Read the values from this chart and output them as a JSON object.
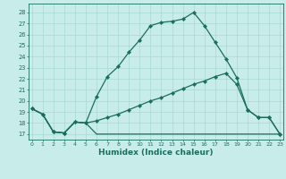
{
  "bg_color": "#c8ecea",
  "line_color": "#1a6e60",
  "grid_color": "#a8d8d0",
  "xlabel": "Humidex (Indice chaleur)",
  "xlabel_fontsize": 6.5,
  "ylim": [
    16.5,
    28.8
  ],
  "xlim": [
    -0.3,
    23.3
  ],
  "yticks": [
    17,
    18,
    19,
    20,
    21,
    22,
    23,
    24,
    25,
    26,
    27,
    28
  ],
  "xticks": [
    0,
    1,
    2,
    3,
    4,
    5,
    6,
    7,
    8,
    9,
    10,
    11,
    12,
    13,
    14,
    15,
    16,
    17,
    18,
    19,
    20,
    21,
    22,
    23
  ],
  "line1_x": [
    0,
    1,
    2,
    3,
    4,
    5,
    6,
    7,
    8,
    9,
    10,
    11,
    12,
    13,
    14,
    15,
    16,
    17,
    18,
    19,
    20,
    21,
    22,
    23
  ],
  "line1_y": [
    19.3,
    18.8,
    17.2,
    17.1,
    18.1,
    18.0,
    20.4,
    22.2,
    23.1,
    24.4,
    25.5,
    26.8,
    27.1,
    27.2,
    27.4,
    28.0,
    26.8,
    25.3,
    23.8,
    22.1,
    19.2,
    18.5,
    18.5,
    17.0
  ],
  "line2_x": [
    0,
    1,
    2,
    3,
    4,
    5,
    6,
    7,
    8,
    9,
    10,
    11,
    12,
    13,
    14,
    15,
    16,
    17,
    18,
    19,
    20,
    21,
    22,
    23
  ],
  "line2_y": [
    19.3,
    18.8,
    17.2,
    17.1,
    18.1,
    18.0,
    18.2,
    18.5,
    18.8,
    19.2,
    19.6,
    20.0,
    20.3,
    20.7,
    21.1,
    21.5,
    21.8,
    22.2,
    22.5,
    21.5,
    19.2,
    18.5,
    18.5,
    17.0
  ],
  "line3_x": [
    0,
    1,
    2,
    3,
    4,
    5,
    6,
    7,
    8,
    9,
    10,
    11,
    12,
    13,
    14,
    15,
    16,
    17,
    18,
    19,
    20,
    21,
    22,
    23
  ],
  "line3_y": [
    19.3,
    18.8,
    17.2,
    17.1,
    18.1,
    18.0,
    17.0,
    17.0,
    17.0,
    17.0,
    17.0,
    17.0,
    17.0,
    17.0,
    17.0,
    17.0,
    17.0,
    17.0,
    17.0,
    17.0,
    17.0,
    17.0,
    17.0,
    17.0
  ]
}
